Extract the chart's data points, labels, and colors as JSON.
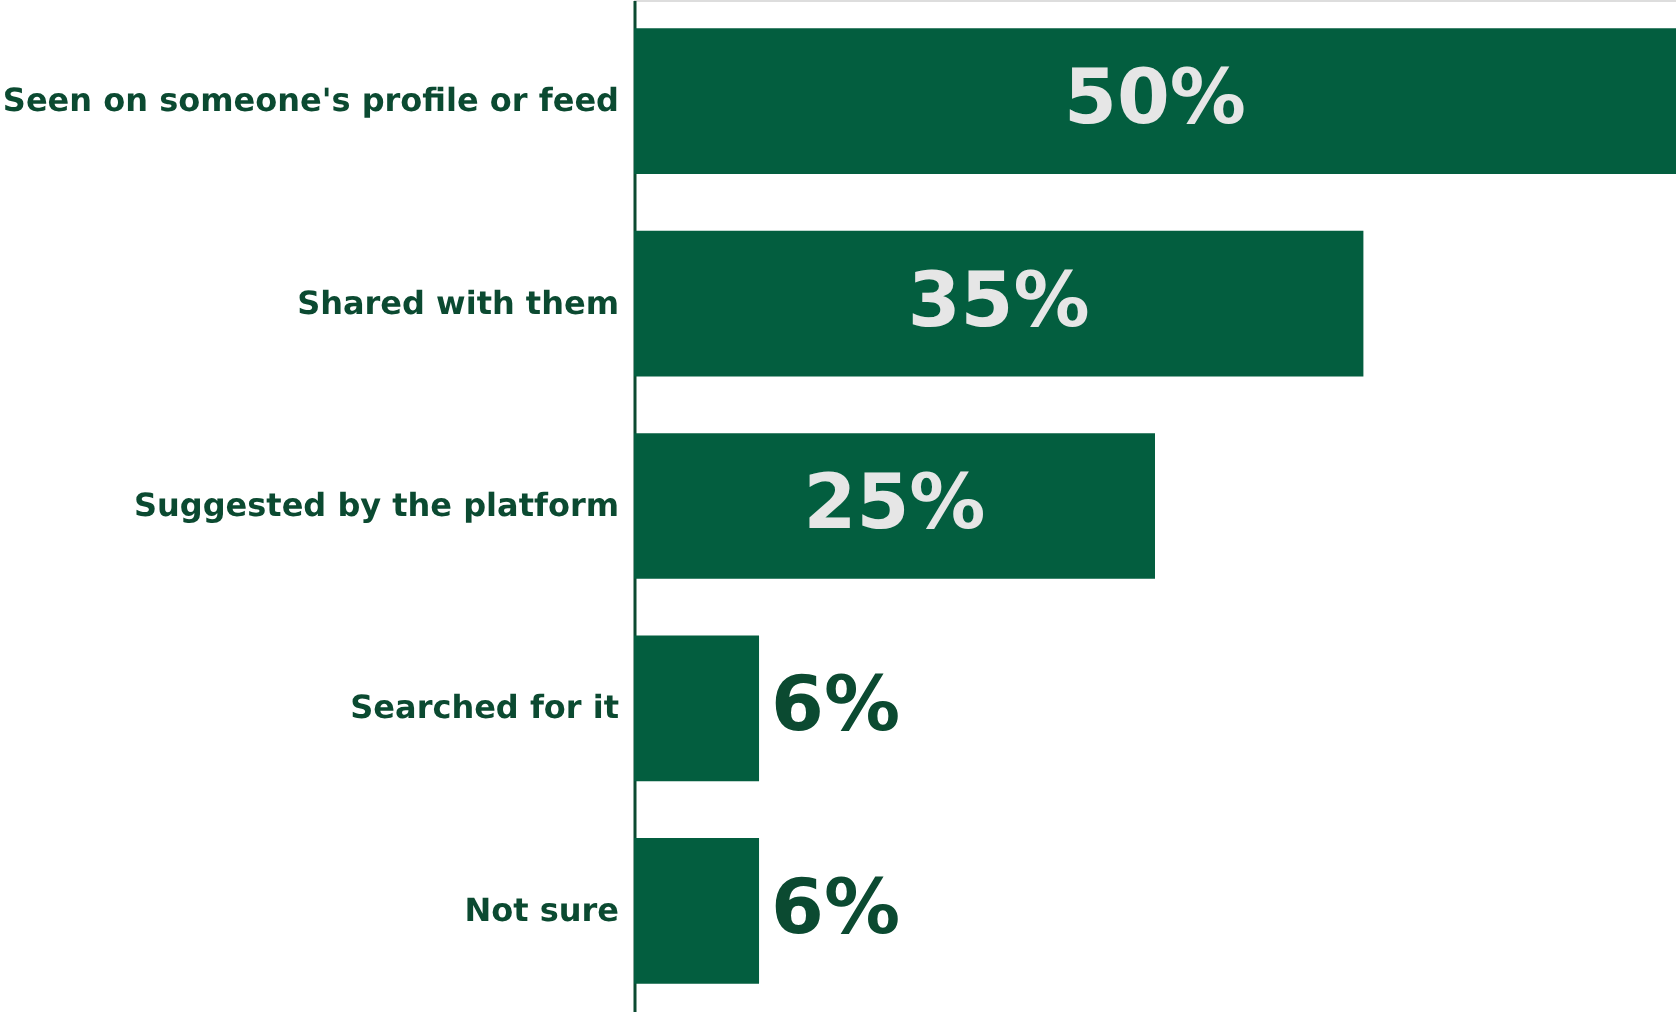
{
  "chart_data": {
    "type": "bar",
    "orientation": "horizontal",
    "categories": [
      "Seen on someone's profile or feed",
      "Shared with them",
      "Suggested by the platform",
      "Searched for it",
      "Not sure"
    ],
    "values": [
      50,
      35,
      25,
      6,
      6
    ],
    "color": "#035e3f",
    "value_labels": [
      "50%",
      "35%",
      "25%",
      "6%",
      "6%"
    ],
    "tick_labels": "y"
  }
}
